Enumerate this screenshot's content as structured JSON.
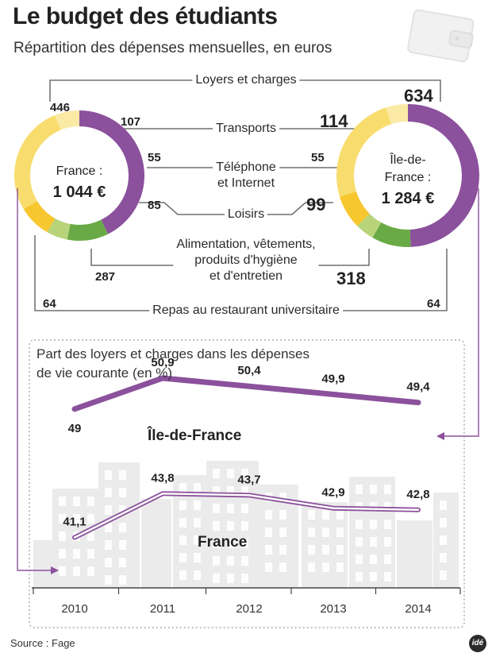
{
  "title": "Le budget des étudiants",
  "subtitle": "Répartition des dépenses mensuelles, en euros",
  "colors": {
    "purple": "#8b519c",
    "green": "#6aaa46",
    "light_green": "#b8d47a",
    "orange_yellow": "#f7c72f",
    "yellow": "#f8dd6e",
    "pale_yellow": "#fbeaa6",
    "buildings": "#ebebeb",
    "line_grey": "#555555"
  },
  "categories": {
    "loyers": "Loyers et charges",
    "transports": "Transports",
    "telephone": [
      "Téléphone",
      "et Internet"
    ],
    "loisirs": "Loisirs",
    "alimentation": [
      "Alimentation, vêtements,",
      "produits d'hygiène",
      "et d'entretien"
    ],
    "repas": "Repas au restaurant universitaire"
  },
  "france": {
    "label": "France :",
    "total": "1 044 €",
    "values": {
      "loyers": "446",
      "transports": "107",
      "telephone": "55",
      "loisirs": "85",
      "alimentation": "287",
      "repas": "64"
    }
  },
  "idf": {
    "label": [
      "Île-de-",
      "France :"
    ],
    "total": "1 284 €",
    "values": {
      "loyers": "634",
      "transports": "114",
      "telephone": "55",
      "loisirs": "99",
      "alimentation": "318",
      "repas": "64"
    }
  },
  "line_section": {
    "title": [
      "Part des loyers et charges dans les dépenses",
      "de vie courante (en %)"
    ],
    "idf_label": "Île-de-France",
    "france_label": "France"
  },
  "chart_data": [
    {
      "type": "pie",
      "title": "France : 1 044 €",
      "categories": [
        "Loyers et charges",
        "Transports",
        "Téléphone et Internet",
        "Loisirs",
        "Alimentation, vêtements, produits d'hygiène et d'entretien",
        "Repas au restaurant universitaire"
      ],
      "values": [
        446,
        107,
        55,
        85,
        287,
        64
      ],
      "colors": [
        "#8b519c",
        "#6aaa46",
        "#b8d47a",
        "#f7c72f",
        "#f8dd6e",
        "#fbeaa6"
      ]
    },
    {
      "type": "pie",
      "title": "Île-de-France : 1 284 €",
      "categories": [
        "Loyers et charges",
        "Transports",
        "Téléphone et Internet",
        "Loisirs",
        "Alimentation, vêtements, produits d'hygiène et d'entretien",
        "Repas au restaurant universitaire"
      ],
      "values": [
        634,
        114,
        55,
        99,
        318,
        64
      ],
      "colors": [
        "#8b519c",
        "#6aaa46",
        "#b8d47a",
        "#f7c72f",
        "#f8dd6e",
        "#fbeaa6"
      ]
    },
    {
      "type": "line",
      "title": "Part des loyers et charges dans les dépenses de vie courante (en %)",
      "x": [
        "2010",
        "2011",
        "2012",
        "2013",
        "2014"
      ],
      "ylim": [
        38,
        53
      ],
      "series": [
        {
          "name": "Île-de-France",
          "values": [
            49,
            50.9,
            50.4,
            49.9,
            49.4
          ],
          "labels": [
            "49",
            "50,9",
            "50,4",
            "49,9",
            "49,4"
          ]
        },
        {
          "name": "France",
          "values": [
            41.1,
            43.8,
            43.7,
            42.9,
            42.8
          ],
          "labels": [
            "41,1",
            "43,8",
            "43,7",
            "42,9",
            "42,8"
          ]
        }
      ]
    }
  ],
  "source": "Source : Fage",
  "logo": "idé"
}
